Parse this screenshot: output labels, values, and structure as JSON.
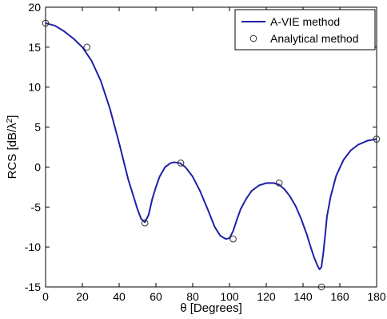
{
  "chart_data": {
    "type": "line",
    "title": "",
    "xlabel": "θ [Degrees]",
    "ylabel_main": "RCS [dB/λ",
    "ylabel_sup": "2",
    "ylabel_tail": "]",
    "xlim": [
      0,
      180
    ],
    "ylim": [
      -15,
      20
    ],
    "xticks": [
      0,
      20,
      40,
      60,
      80,
      100,
      120,
      140,
      160,
      180
    ],
    "yticks": [
      -15,
      -10,
      -5,
      0,
      5,
      10,
      15,
      20
    ],
    "grid": false,
    "legend_position": "top-right",
    "series": [
      {
        "name": "A-VIE method",
        "style": "line",
        "color": "#1f1fa8",
        "x": [
          0,
          5,
          10,
          15,
          20,
          25,
          30,
          35,
          40,
          45,
          48,
          50,
          52,
          54,
          56,
          58,
          60,
          62,
          65,
          68,
          70,
          73,
          76,
          80,
          84,
          88,
          92,
          95,
          98,
          100,
          102,
          104,
          106,
          109,
          112,
          116,
          120,
          124,
          127,
          130,
          133,
          136,
          139,
          142,
          144,
          146,
          148,
          149,
          150,
          151,
          152,
          153,
          155,
          158,
          162,
          166,
          170,
          175,
          180
        ],
        "y": [
          18,
          17.7,
          17.0,
          16.1,
          15.0,
          13.3,
          10.8,
          7.3,
          3.0,
          -1.6,
          -3.8,
          -5.3,
          -6.5,
          -6.9,
          -6.0,
          -4.0,
          -2.5,
          -1.2,
          0.0,
          0.5,
          0.6,
          0.5,
          0.0,
          -1.2,
          -3.0,
          -5.2,
          -7.5,
          -8.6,
          -9.0,
          -8.9,
          -8.0,
          -6.6,
          -5.3,
          -4.0,
          -3.0,
          -2.3,
          -2.0,
          -2.0,
          -2.2,
          -2.8,
          -3.7,
          -4.9,
          -6.5,
          -8.4,
          -9.9,
          -11.3,
          -12.4,
          -12.8,
          -12.5,
          -10.8,
          -8.6,
          -6.2,
          -3.7,
          -1.1,
          0.9,
          2.1,
          2.8,
          3.3,
          3.5
        ]
      },
      {
        "name": "Analytical method",
        "style": "markers",
        "color": "#333333",
        "x": [
          0,
          22.5,
          54,
          73.5,
          102,
          127,
          150,
          180
        ],
        "y": [
          18,
          15,
          -7,
          0.5,
          -9,
          -2,
          -15,
          3.5
        ]
      }
    ]
  }
}
